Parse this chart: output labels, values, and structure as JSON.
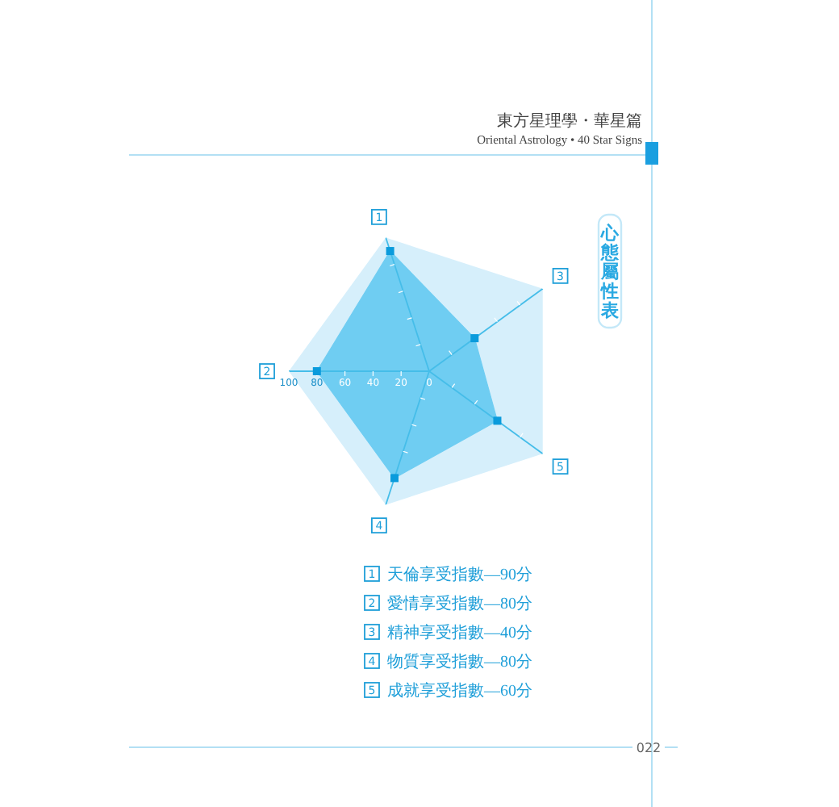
{
  "chart_data": {
    "type": "radar",
    "title": "心態屬性表",
    "categories": [
      "1",
      "3",
      "5",
      "4",
      "2"
    ],
    "series": [
      {
        "color": "#6fcdf2",
        "values": [
          90,
          40,
          60,
          80,
          80
        ]
      }
    ],
    "ylim": [
      0,
      100
    ],
    "yticks": [
      0,
      20,
      40,
      60,
      80,
      100
    ],
    "marker": "square",
    "annotations": [
      "東方星理學・華星篇",
      "Oriental Astrology • 40 Star Signs",
      "1",
      "天倫享受指數—90分",
      "2",
      "愛情享受指數—80分",
      "3",
      "精神享受指數—40分",
      "4",
      "物質享受指數—80分",
      "5",
      "成就享受指數—60分",
      "022"
    ]
  }
}
